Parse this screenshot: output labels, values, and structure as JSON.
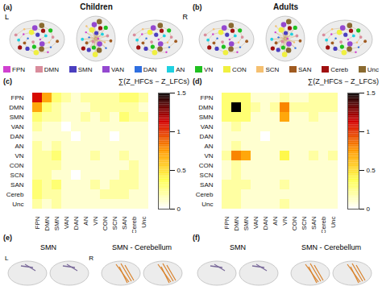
{
  "figure": {
    "top_panels": [
      {
        "letter": "(a)",
        "title": "Children",
        "views": [
          "L",
          "R"
        ]
      },
      {
        "letter": "(b)",
        "title": "Adults"
      }
    ],
    "legend": [
      {
        "name": "FPN",
        "color": "#d040d0"
      },
      {
        "name": "DMN",
        "color": "#d98c9c"
      },
      {
        "name": "SMN",
        "color": "#4b3fbf"
      },
      {
        "name": "VAN",
        "color": "#9448d0"
      },
      {
        "name": "DAN",
        "color": "#2f6fe0"
      },
      {
        "name": "AN",
        "color": "#20d0e0"
      },
      {
        "name": "VN",
        "color": "#20c020"
      },
      {
        "name": "CON",
        "color": "#f0f040"
      },
      {
        "name": "SCN",
        "color": "#f5c070"
      },
      {
        "name": "SAN",
        "color": "#a05a20"
      },
      {
        "name": "Cereb",
        "color": "#a01010"
      },
      {
        "name": "Unc",
        "color": "#8a6a30"
      }
    ],
    "bottom_panels": [
      {
        "letter": "(e)",
        "labels": [
          "SMN",
          "SMN - Cerebellum"
        ],
        "views": [
          "L",
          "R"
        ]
      },
      {
        "letter": "(f)",
        "labels": [
          "SMN",
          "SMN - Cerebellum"
        ]
      }
    ]
  },
  "chart_data": [
    {
      "type": "heatmap",
      "title": "(c)",
      "categories": [
        "FPN",
        "DMN",
        "SMN",
        "VAN",
        "DAN",
        "AN",
        "VN",
        "CON",
        "SCN",
        "SAN",
        "Cereb",
        "Unc"
      ],
      "values": [
        [
          1.1,
          0.7,
          0.3,
          0.2,
          0.1,
          0.2,
          0.2,
          0.2,
          0.2,
          0.3,
          0.3,
          0.2
        ],
        [
          0.7,
          0.3,
          0.2,
          0.1,
          0.1,
          0.1,
          0.2,
          0.2,
          0.2,
          0.2,
          0.2,
          0.1
        ],
        [
          0.3,
          0.2,
          0.2,
          0.1,
          0.1,
          0.2,
          0.1,
          0.2,
          0.1,
          0.3,
          0.2,
          0.2
        ],
        [
          0.2,
          0.1,
          0.1,
          0.0,
          0.1,
          0.1,
          0.1,
          0.1,
          0.1,
          0.1,
          0.1,
          0.1
        ],
        [
          0.1,
          0.1,
          0.1,
          0.1,
          0.0,
          0.1,
          0.1,
          0.1,
          0.0,
          0.1,
          0.1,
          0.1
        ],
        [
          0.2,
          0.1,
          0.2,
          0.1,
          0.1,
          0.1,
          0.1,
          0.1,
          0.1,
          0.1,
          0.1,
          0.1
        ],
        [
          0.2,
          0.2,
          0.3,
          0.1,
          0.1,
          0.1,
          0.2,
          0.1,
          0.1,
          0.2,
          0.1,
          0.1
        ],
        [
          0.2,
          0.2,
          0.2,
          0.1,
          0.1,
          0.1,
          0.1,
          0.1,
          0.1,
          0.1,
          0.2,
          0.1
        ],
        [
          0.2,
          0.2,
          0.1,
          0.1,
          0.0,
          0.1,
          0.1,
          0.1,
          0.1,
          0.2,
          0.2,
          0.1
        ],
        [
          0.3,
          0.2,
          0.3,
          0.1,
          0.1,
          0.1,
          0.2,
          0.1,
          0.2,
          0.2,
          0.2,
          0.1
        ],
        [
          0.3,
          0.2,
          0.2,
          0.1,
          0.1,
          0.1,
          0.1,
          0.2,
          0.2,
          0.2,
          0.1,
          0.1
        ],
        [
          0.2,
          0.1,
          0.2,
          0.1,
          0.1,
          0.1,
          0.1,
          0.1,
          0.1,
          0.1,
          0.1,
          0.1
        ]
      ],
      "colorbar": {
        "label": "∑(Z_HFCs − Z_LFCs)",
        "range": [
          0,
          1.5
        ],
        "ticks": [
          0,
          0.5,
          1,
          1.5
        ]
      }
    },
    {
      "type": "heatmap",
      "title": "(d)",
      "categories": [
        "FPN",
        "DMN",
        "SMN",
        "VAN",
        "DAN",
        "AN",
        "VN",
        "CON",
        "SCN",
        "SAN",
        "Cereb",
        "Unc"
      ],
      "values": [
        [
          0.3,
          0.3,
          0.3,
          0.1,
          0.1,
          0.1,
          0.2,
          0.1,
          0.1,
          0.2,
          0.2,
          0.2
        ],
        [
          0.3,
          1.5,
          0.3,
          0.2,
          0.1,
          0.2,
          0.8,
          0.2,
          0.2,
          0.2,
          0.2,
          0.2
        ],
        [
          0.3,
          0.3,
          0.3,
          0.1,
          0.1,
          0.1,
          0.7,
          0.1,
          0.1,
          0.2,
          0.1,
          0.1
        ],
        [
          0.1,
          0.2,
          0.1,
          0.1,
          0.1,
          0.1,
          0.1,
          0.1,
          0.1,
          0.1,
          0.1,
          0.1
        ],
        [
          0.1,
          0.1,
          0.1,
          0.1,
          0.0,
          0.1,
          0.1,
          0.1,
          0.1,
          0.1,
          0.1,
          0.1
        ],
        [
          0.1,
          0.2,
          0.1,
          0.1,
          0.1,
          0.1,
          0.1,
          0.1,
          0.1,
          0.1,
          0.1,
          0.1
        ],
        [
          0.2,
          0.8,
          0.7,
          0.1,
          0.1,
          0.1,
          0.4,
          0.1,
          0.1,
          0.2,
          0.1,
          0.2
        ],
        [
          0.1,
          0.2,
          0.1,
          0.1,
          0.1,
          0.1,
          0.1,
          0.1,
          0.1,
          0.1,
          0.1,
          0.1
        ],
        [
          0.1,
          0.2,
          0.1,
          0.1,
          0.1,
          0.1,
          0.1,
          0.1,
          0.1,
          0.1,
          0.1,
          0.1
        ],
        [
          0.2,
          0.2,
          0.2,
          0.1,
          0.1,
          0.1,
          0.2,
          0.1,
          0.1,
          0.1,
          0.1,
          0.1
        ],
        [
          0.2,
          0.2,
          0.1,
          0.1,
          0.1,
          0.1,
          0.1,
          0.1,
          0.1,
          0.1,
          0.1,
          0.1
        ],
        [
          0.2,
          0.2,
          0.1,
          0.1,
          0.1,
          0.1,
          0.2,
          0.1,
          0.1,
          0.1,
          0.1,
          0.1
        ]
      ],
      "colorbar": {
        "label": "∑(Z_HFCs − Z_LFCs)",
        "range": [
          0,
          1.5
        ],
        "ticks": [
          0,
          0.5,
          1,
          1.5
        ]
      }
    }
  ]
}
